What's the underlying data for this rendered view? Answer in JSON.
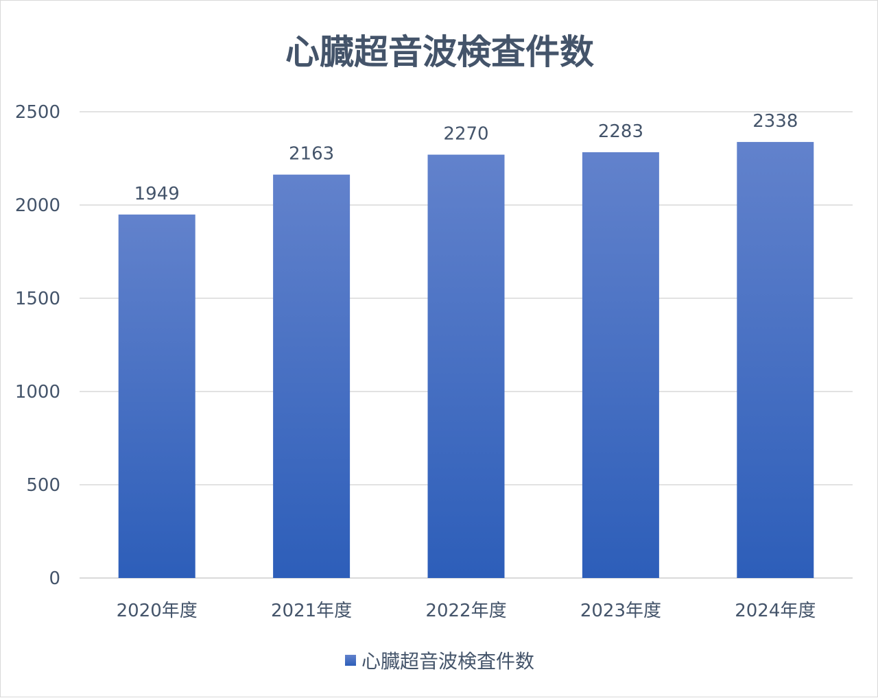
{
  "chart_data": {
    "type": "bar",
    "title": "心臓超音波検査件数",
    "categories": [
      "2020年度",
      "2021年度",
      "2022年度",
      "2023年度",
      "2024年度"
    ],
    "series": [
      {
        "name": "心臓超音波検査件数",
        "values": [
          1949,
          2163,
          2270,
          2283,
          2338
        ]
      }
    ],
    "yticks": [
      "0",
      "500",
      "1000",
      "1500",
      "2000",
      "2500"
    ],
    "ylim": [
      0,
      2500
    ],
    "grid": true,
    "data_labels": true,
    "legend_position": "bottom",
    "colors": {
      "bar_top": "#6282cc",
      "bar_bottom": "#2d5eb9",
      "grid": "#d9d9d9",
      "text": "#44546a"
    }
  }
}
